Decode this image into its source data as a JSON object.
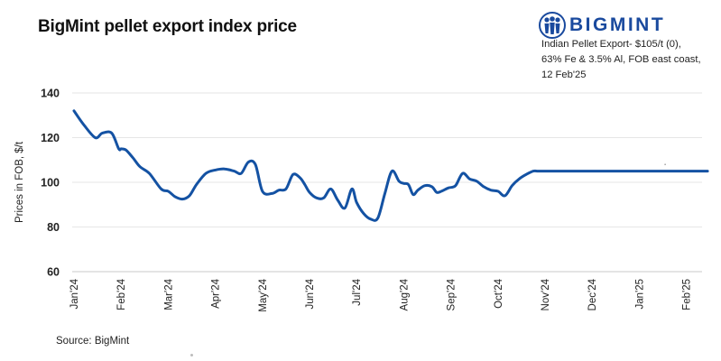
{
  "chart_data": {
    "type": "line",
    "title": "BigMint pellet export index price",
    "xlabel": "",
    "ylabel": "Prices in FOB, $/t",
    "ylim": [
      60,
      140
    ],
    "yticks": [
      60,
      80,
      100,
      120,
      140
    ],
    "grid": "horizontal",
    "x_month_labels": [
      "Jan'24",
      "Feb'24",
      "Mar'24",
      "Apr'24",
      "May'24",
      "Jun'24",
      "Jul'24",
      "Aug'24",
      "Sep'24",
      "Oct'24",
      "Nov'24",
      "Dec'24",
      "Jan'25",
      "Feb'25"
    ],
    "series": [
      {
        "name": "Indian Pellet Export",
        "color": "#1452a3",
        "x": [
          0,
          0.2,
          0.45,
          0.6,
          0.8,
          0.95,
          1.0,
          1.1,
          1.25,
          1.4,
          1.6,
          1.85,
          2.0,
          2.15,
          2.3,
          2.45,
          2.6,
          2.8,
          3.0,
          3.2,
          3.4,
          3.55,
          3.7,
          3.85,
          4.0,
          4.2,
          4.35,
          4.5,
          4.65,
          4.8,
          4.9,
          5.0,
          5.15,
          5.3,
          5.45,
          5.6,
          5.75,
          5.9,
          6.0,
          6.15,
          6.3,
          6.45,
          6.6,
          6.75,
          6.9,
          7.0,
          7.1,
          7.2,
          7.3,
          7.45,
          7.6,
          7.7,
          7.8,
          7.95,
          8.1,
          8.25,
          8.4,
          8.55,
          8.7,
          8.85,
          9.0,
          9.15,
          9.3,
          9.45,
          9.6,
          9.75,
          9.85,
          10.0,
          10.15,
          10.3,
          10.45,
          10.6,
          10.75,
          10.9,
          11.05,
          11.15,
          11.25,
          11.4,
          11.55,
          11.7,
          11.85,
          12.0,
          12.15,
          12.3,
          12.45,
          12.6,
          12.8,
          13.0,
          13.25,
          13.45
        ],
        "values": [
          132,
          126,
          120,
          122,
          122,
          115,
          115,
          114.5,
          111,
          107,
          104,
          97,
          96,
          93.5,
          92.5,
          94,
          99,
          104,
          105.5,
          106,
          105,
          104,
          109,
          108,
          96,
          95,
          96.5,
          97,
          103.5,
          102,
          99,
          95.5,
          93,
          93,
          97,
          92,
          88.5,
          97,
          91,
          86,
          83.5,
          84,
          95,
          105,
          100.5,
          99.5,
          99,
          94.5,
          96.5,
          98.5,
          98,
          95.5,
          96,
          97.5,
          98.5,
          104,
          101.5,
          100.5,
          98,
          96.5,
          96,
          94,
          98.5,
          101.5,
          103.5,
          105,
          105,
          105,
          105,
          105,
          105,
          105,
          105,
          105,
          105,
          105,
          105,
          105,
          105,
          105,
          105,
          105,
          105,
          105,
          105,
          105,
          105,
          105,
          105,
          105
        ]
      }
    ]
  },
  "header": {
    "title": "BigMint pellet export index price",
    "logo_text": "BIGMINT",
    "note_lines": [
      "Indian Pellet Export- $105/t (0),",
      "63% Fe & 3.5% Al, FOB east coast,",
      "12 Feb'25"
    ]
  },
  "footer": {
    "source": "Source: BigMint"
  }
}
